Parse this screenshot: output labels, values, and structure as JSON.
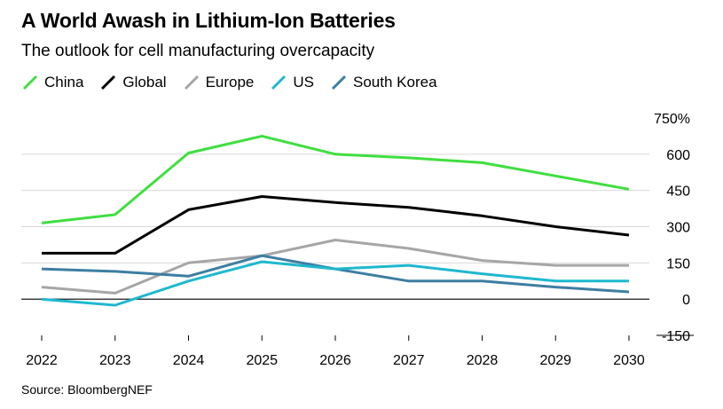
{
  "header": {
    "title": "A World Awash in Lithium-Ion Batteries",
    "subtitle": "The outlook for cell manufacturing overcapacity"
  },
  "footer": {
    "source": "Source: BloombergNEF"
  },
  "chart_data": {
    "type": "line",
    "title": "A World Awash in Lithium-Ion Batteries",
    "subtitle": "The outlook for cell manufacturing overcapacity",
    "xlabel": "",
    "ylabel": "",
    "x": [
      "2022",
      "2023",
      "2024",
      "2025",
      "2026",
      "2027",
      "2028",
      "2029",
      "2030"
    ],
    "ylim": [
      -150,
      750
    ],
    "yticks": [
      -150,
      0,
      150,
      300,
      450,
      600,
      750
    ],
    "ytick_labels": [
      "-150",
      "0",
      "150",
      "300",
      "450",
      "600",
      "750%"
    ],
    "legend_position": "top-left",
    "grid": true,
    "series": [
      {
        "name": "China",
        "color": "#3fdf3f",
        "values": [
          315,
          350,
          605,
          675,
          600,
          585,
          565,
          510,
          455
        ]
      },
      {
        "name": "Global",
        "color": "#000000",
        "values": [
          190,
          190,
          370,
          425,
          400,
          380,
          345,
          300,
          265
        ]
      },
      {
        "name": "Europe",
        "color": "#a6a6a6",
        "values": [
          50,
          25,
          150,
          180,
          245,
          210,
          160,
          140,
          140
        ]
      },
      {
        "name": "US",
        "color": "#1fb8cf",
        "values": [
          0,
          -25,
          75,
          155,
          125,
          140,
          105,
          75,
          75
        ]
      },
      {
        "name": "South Korea",
        "color": "#3d7ea2",
        "values": [
          125,
          115,
          95,
          180,
          125,
          75,
          75,
          50,
          30
        ]
      }
    ]
  }
}
